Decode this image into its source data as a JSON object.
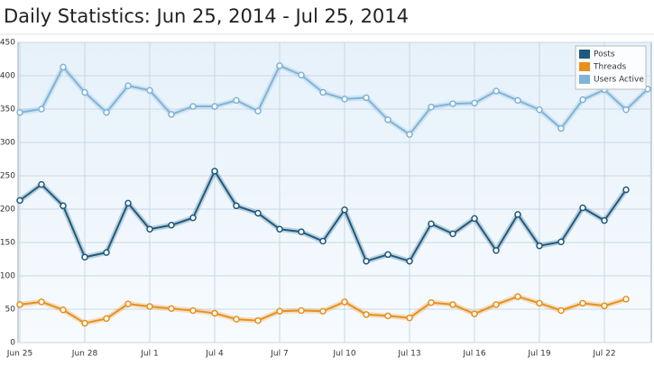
{
  "chart_data": {
    "type": "line",
    "title": "Daily Statistics: Jun 25, 2014 - Jul 25, 2014",
    "categories": [
      "Jun 25",
      null,
      null,
      "Jun 28",
      null,
      null,
      "Jul 1",
      null,
      null,
      "Jul 4",
      null,
      null,
      "Jul 7",
      null,
      null,
      "Jul 10",
      null,
      null,
      "Jul 13",
      null,
      null,
      "Jul 16",
      null,
      null,
      "Jul 19",
      null,
      null,
      "Jul 22",
      null,
      null
    ],
    "series": [
      {
        "name": "Posts",
        "color": "#1f5a7e",
        "values": [
          213,
          237,
          205,
          128,
          135,
          209,
          170,
          176,
          187,
          257,
          205,
          194,
          170,
          166,
          152,
          199,
          122,
          132,
          122,
          178,
          163,
          186,
          138,
          192,
          145,
          151,
          202,
          183,
          229,
          null
        ]
      },
      {
        "name": "Threads",
        "color": "#e8901c",
        "values": [
          57,
          61,
          49,
          29,
          36,
          58,
          54,
          51,
          48,
          44,
          35,
          33,
          47,
          48,
          47,
          61,
          42,
          40,
          37,
          60,
          57,
          43,
          57,
          69,
          59,
          48,
          59,
          55,
          65,
          null
        ]
      },
      {
        "name": "Users Active",
        "color": "#7fb4d8",
        "values": [
          345,
          350,
          413,
          375,
          345,
          385,
          378,
          342,
          354,
          354,
          363,
          347,
          415,
          401,
          375,
          365,
          367,
          334,
          312,
          353,
          358,
          359,
          377,
          363,
          349,
          321,
          364,
          379,
          349,
          380
        ]
      }
    ],
    "ylim": [
      0,
      450
    ],
    "yticks": [
      0,
      50,
      100,
      150,
      200,
      250,
      300,
      350,
      400,
      450
    ],
    "grid": true,
    "legend": "top-right"
  }
}
